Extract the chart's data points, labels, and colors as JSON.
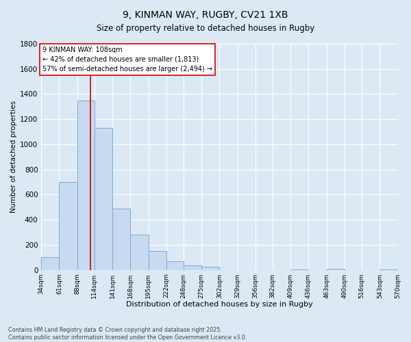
{
  "title_line1": "9, KINMAN WAY, RUGBY, CV21 1XB",
  "title_line2": "Size of property relative to detached houses in Rugby",
  "xlabel": "Distribution of detached houses by size in Rugby",
  "ylabel": "Number of detached properties",
  "bar_color": "#c8daf0",
  "bar_edgecolor": "#7baad4",
  "bg_color": "#dce9f5",
  "grid_color": "#ffffff",
  "vline_x": 108,
  "vline_color": "#cc0000",
  "annotation_text": "9 KINMAN WAY: 108sqm\n← 42% of detached houses are smaller (1,813)\n57% of semi-detached houses are larger (2,494) →",
  "annotation_box_color": "#ffffff",
  "annotation_box_edgecolor": "#cc0000",
  "bins": [
    34,
    61,
    88,
    114,
    141,
    168,
    195,
    222,
    248,
    275,
    302,
    329,
    356,
    382,
    409,
    436,
    463,
    490,
    516,
    543,
    570
  ],
  "counts": [
    100,
    700,
    1350,
    1130,
    490,
    280,
    150,
    70,
    35,
    25,
    0,
    0,
    0,
    0,
    5,
    0,
    10,
    0,
    0,
    5
  ],
  "ylim": [
    0,
    1800
  ],
  "yticks": [
    0,
    200,
    400,
    600,
    800,
    1000,
    1200,
    1400,
    1600,
    1800
  ],
  "footer_text": "Contains HM Land Registry data © Crown copyright and database right 2025.\nContains public sector information licensed under the Open Government Licence v3.0.",
  "figsize": [
    6.0,
    5.0
  ],
  "dpi": 100
}
